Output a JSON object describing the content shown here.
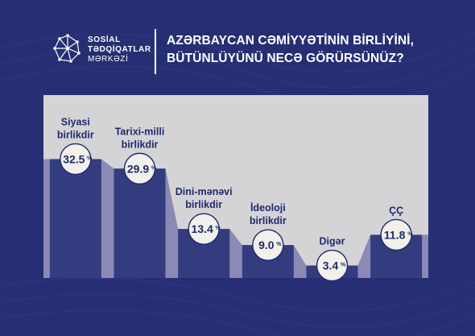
{
  "brand": {
    "line1": "SOSİAL",
    "line2": "TƏDQİQATLAR",
    "line3": "MƏRKƏZİ"
  },
  "title": {
    "line1": "AZƏRBAYCAN CƏMİYYƏTİNİN BİRLİYİNİ,",
    "line2": "BÜTÜNLÜYÜNÜ NECƏ GÖRÜRSÜNÜZ?"
  },
  "colors": {
    "background": "#262f73",
    "panel": "#d4d4d6",
    "area_light": "#8c89b6",
    "bar_dark": "#343c80",
    "bubble": "#f1f0ea",
    "text_dark": "#1f2a6b"
  },
  "chart_data": {
    "type": "bar",
    "categories": [
      [
        "Siyasi",
        "birlikdir"
      ],
      [
        "Tarixi-milli",
        "birlikdir"
      ],
      [
        "Dini-mənəvi",
        "birlikdir"
      ],
      [
        "İdeoloji",
        "birlikdir"
      ],
      [
        "Digər"
      ],
      [
        "ÇÇ"
      ]
    ],
    "values": [
      32.5,
      29.9,
      13.4,
      9.0,
      3.4,
      11.8
    ],
    "value_labels": [
      "32.5",
      "29.9",
      "13.4",
      "9.0",
      "3.4",
      "11.8"
    ],
    "unit": "%",
    "ylim": [
      0,
      50
    ],
    "grid": false
  }
}
